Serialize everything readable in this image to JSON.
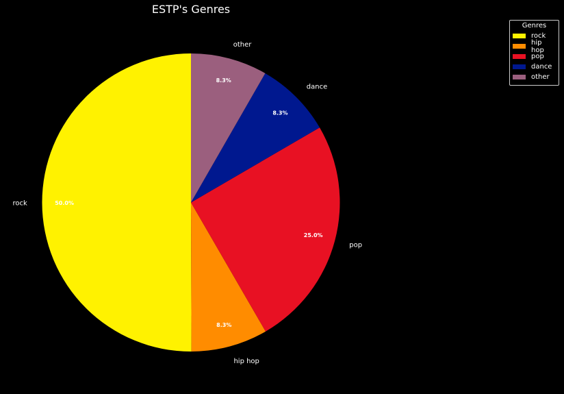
{
  "chart_data": {
    "type": "pie",
    "title": "ESTP's Genres",
    "labels": [
      "rock",
      "hip hop",
      "pop",
      "dance",
      "other"
    ],
    "values": [
      50.0,
      8.3,
      25.0,
      8.3,
      8.3
    ],
    "percent_labels": [
      "50.0%",
      "8.3%",
      "25.0%",
      "8.3%",
      "8.3%"
    ],
    "colors": [
      "#fff200",
      "#ff8c00",
      "#e81123",
      "#00188f",
      "#9b5f7e"
    ],
    "start_angle_deg": 90,
    "direction": "counterclockwise",
    "legend": {
      "title": "Genres",
      "placement": "top-right"
    }
  }
}
